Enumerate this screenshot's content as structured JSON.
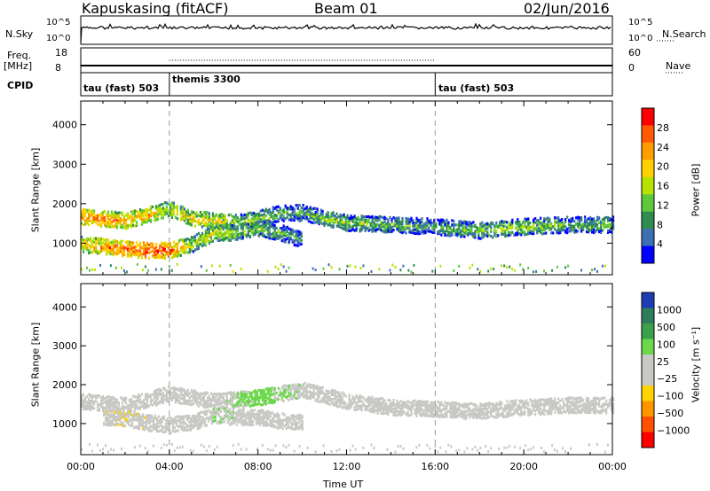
{
  "header": {
    "station": "Kapuskasing (fitACF)",
    "beam": "Beam 01",
    "date": "02/Jun/2016"
  },
  "top_panels": {
    "nsky_label": "N.Sky",
    "nsky_ticks": [
      "10^5",
      "10^0"
    ],
    "nsearch_label": "N.Search",
    "nsearch_ticks": [
      "10^5",
      "10^0"
    ],
    "freq_label_1": "Freq.",
    "freq_label_2": "[MHz]",
    "freq_ticks": [
      "18",
      "8"
    ],
    "nave_label": "Nave",
    "nave_ticks": [
      "60",
      "0"
    ],
    "cpid_label": "CPID",
    "cpid_segments": [
      {
        "label": "tau (fast) 503",
        "start_hour": 0,
        "end_hour": 4
      },
      {
        "label": "themis 3300",
        "start_hour": 4,
        "end_hour": 16
      },
      {
        "label": "tau (fast) 503",
        "start_hour": 16,
        "end_hour": 24
      }
    ]
  },
  "power_panel": {
    "ylabel": "Slant Range [km]",
    "yticks": [
      "4000",
      "3000",
      "2000",
      "1000"
    ],
    "colorbar_label": "Power [dB]",
    "colorbar_ticks": [
      "28",
      "24",
      "20",
      "16",
      "12",
      "8",
      "4"
    ],
    "colorbar_colors": [
      "#ff0000",
      "#ff5a00",
      "#ff9c00",
      "#ffd100",
      "#b8e000",
      "#5ec83c",
      "#2e8c50",
      "#3c6fb4",
      "#0000ff"
    ]
  },
  "velocity_panel": {
    "ylabel": "Slant Range [km]",
    "yticks": [
      "4000",
      "3000",
      "2000",
      "1000"
    ],
    "colorbar_label": "Velocity [m s⁻¹]",
    "colorbar_ticks": [
      "1000",
      "500",
      "100",
      "25",
      "−25",
      "−100",
      "−500",
      "−1000"
    ],
    "colorbar_colors": [
      "#1e3cb4",
      "#2e7c5a",
      "#3aa04a",
      "#6ad84a",
      "#c8c8c4",
      "#c8c8c4",
      "#ffd200",
      "#ff9600",
      "#ff5000",
      "#ff0000"
    ]
  },
  "xaxis": {
    "label": "Time UT",
    "ticks": [
      "00:00",
      "04:00",
      "08:00",
      "12:00",
      "16:00",
      "20:00",
      "00:00"
    ]
  },
  "chart_data": {
    "type": "heatmap",
    "title": "Kapuskasing (fitACF) Beam 01 02/Jun/2016",
    "xlabel": "Time UT",
    "ylabel": "Slant Range [km]",
    "xlim": [
      0,
      24
    ],
    "ylim": [
      200,
      4600
    ],
    "power_scale_db": [
      0,
      32
    ],
    "velocity_scale_ms": [
      -1000,
      1000
    ],
    "power_echo_bands": [
      {
        "t": [
          0,
          1,
          2,
          3,
          4,
          5,
          6,
          7,
          8,
          9,
          10,
          11,
          12,
          14,
          16,
          18,
          20,
          22,
          24
        ],
        "range_km": [
          1700,
          1650,
          1600,
          1750,
          1900,
          1650,
          1600,
          1550,
          1650,
          1800,
          1800,
          1650,
          1550,
          1500,
          1450,
          1350,
          1450,
          1500,
          1500
        ],
        "power_db": [
          24,
          26,
          22,
          22,
          16,
          20,
          18,
          16,
          14,
          12,
          10,
          14,
          14,
          12,
          10,
          14,
          14,
          12,
          12
        ]
      },
      {
        "t": [
          0,
          1,
          2,
          3,
          4,
          5,
          6,
          7,
          8,
          9,
          10
        ],
        "range_km": [
          1000,
          950,
          900,
          850,
          850,
          1000,
          1300,
          1300,
          1400,
          1300,
          1100
        ],
        "power_db": [
          20,
          24,
          26,
          28,
          28,
          16,
          18,
          14,
          14,
          12,
          10
        ]
      }
    ],
    "velocity_echo_bands": [
      {
        "t": [
          0,
          2,
          4,
          6,
          8,
          10,
          12,
          14,
          16,
          18,
          20,
          22,
          24
        ],
        "range_km": [
          1600,
          1500,
          1800,
          1600,
          1700,
          1900,
          1600,
          1450,
          1400,
          1350,
          1450,
          1500,
          1500
        ],
        "velocity_ms": [
          0,
          0,
          0,
          50,
          300,
          100,
          0,
          0,
          0,
          0,
          0,
          0,
          0
        ]
      },
      {
        "t": [
          1,
          2,
          3,
          4,
          5,
          6,
          7,
          8,
          9,
          10
        ],
        "range_km": [
          1200,
          1150,
          1050,
          1000,
          1050,
          1250,
          1200,
          1200,
          1100,
          1050
        ],
        "velocity_ms": [
          -100,
          -150,
          -100,
          100,
          -50,
          150,
          100,
          100,
          100,
          50
        ]
      }
    ]
  }
}
